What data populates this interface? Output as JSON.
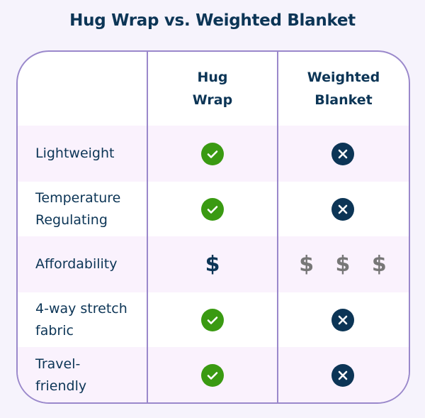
{
  "title": "Hug Wrap vs. Weighted Blanket",
  "columns": [
    "Hug\nWrap",
    "Weighted\nBlanket"
  ],
  "column_lines": [
    [
      "Hug",
      "Wrap"
    ],
    [
      "Weighted",
      "Blanket"
    ]
  ],
  "colors": {
    "check": "#3a9a12",
    "cross": "#0c3556",
    "border": "#9a88cb",
    "text": "#0c3556",
    "stripe": "#faf2fd"
  },
  "rows": [
    {
      "feature": [
        "Lightweight"
      ],
      "hug_wrap": "check-icon",
      "weighted_blanket": "x-icon"
    },
    {
      "feature": [
        "Temperature",
        "Regulating"
      ],
      "hug_wrap": "check-icon",
      "weighted_blanket": "x-icon"
    },
    {
      "feature": [
        "Affordability"
      ],
      "hug_wrap": "$",
      "weighted_blanket": "$ $ $"
    },
    {
      "feature": [
        "4-way stretch",
        "fabric"
      ],
      "hug_wrap": "check-icon",
      "weighted_blanket": "x-icon"
    },
    {
      "feature": [
        "Travel-",
        "friendly"
      ],
      "hug_wrap": "check-icon",
      "weighted_blanket": "x-icon"
    }
  ]
}
